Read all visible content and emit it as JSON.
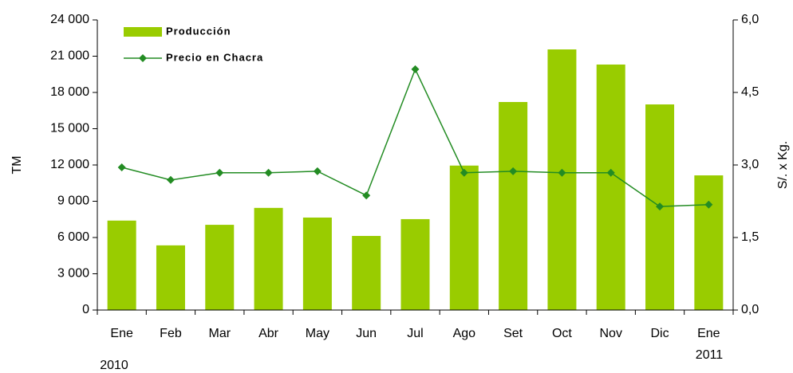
{
  "chart_data": {
    "type": "bar_line",
    "categories": [
      "Ene",
      "Feb",
      "Mar",
      "Abr",
      "May",
      "Jun",
      "Jul",
      "Ago",
      "Set",
      "Oct",
      "Nov",
      "Dic",
      "Ene"
    ],
    "annotations": [
      "2010",
      "2011"
    ],
    "y_label": "TM",
    "y2_label": "S/. x Kg.",
    "ylim": [
      0,
      24000
    ],
    "yticks": [
      0,
      {
        "value": 3000,
        "label": "3 000"
      },
      {
        "value": 6000,
        "label": "6 000"
      },
      {
        "value": 9000,
        "label": "9 000"
      },
      {
        "value": 12000,
        "label": "12 000"
      },
      {
        "value": 15000,
        "label": "15 000"
      },
      {
        "value": 18000,
        "label": "18 000"
      },
      {
        "value": 21000,
        "label": "21 000"
      },
      {
        "value": 24000,
        "label": "24 000"
      }
    ],
    "y2lim": [
      0,
      6
    ],
    "y2ticks": [
      {
        "value": 0,
        "label": "0,0"
      },
      {
        "value": 1.5,
        "label": "1,5"
      },
      {
        "value": 3,
        "label": "3,0"
      },
      {
        "value": 4.5,
        "label": "4,5"
      },
      {
        "value": 6,
        "label": "6,0"
      }
    ],
    "series": [
      {
        "name": "Producción",
        "type": "bar",
        "color": "#99cc00",
        "values": [
          7400,
          5350,
          7050,
          8450,
          7650,
          6130,
          7520,
          11950,
          17210,
          21560,
          20310,
          17010,
          11140
        ]
      },
      {
        "name": "Precio en Chacra",
        "type": "line",
        "axis": "y2",
        "color": "#238c23",
        "values": [
          2.95,
          2.69,
          2.84,
          2.84,
          2.87,
          2.37,
          4.98,
          2.84,
          2.87,
          2.84,
          2.84,
          2.14,
          2.18
        ]
      }
    ]
  }
}
